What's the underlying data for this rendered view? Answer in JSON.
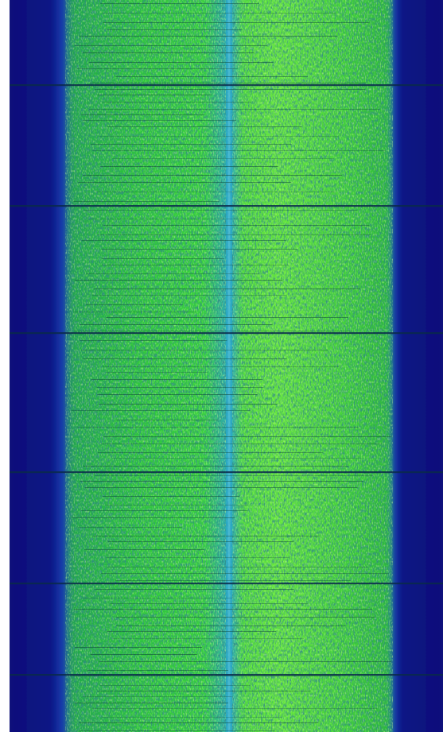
{
  "image": {
    "kind": "spectrogram-waterfall",
    "orientation": "vertical-time",
    "colormap": {
      "background_noise": "#0a0f7a",
      "noise_edge": "#1a2bb0",
      "signal_low": "#1fb83a",
      "signal_high": "#6ee83c",
      "signal_dark": "#0d4a3a",
      "center_carrier": "#2aa7c9",
      "frame_border": "#ffffff"
    },
    "signal_band": {
      "center_carrier": true,
      "horizontal_breaks": true,
      "left_edge_fuzzy": true,
      "right_edge_sharp": true
    }
  }
}
